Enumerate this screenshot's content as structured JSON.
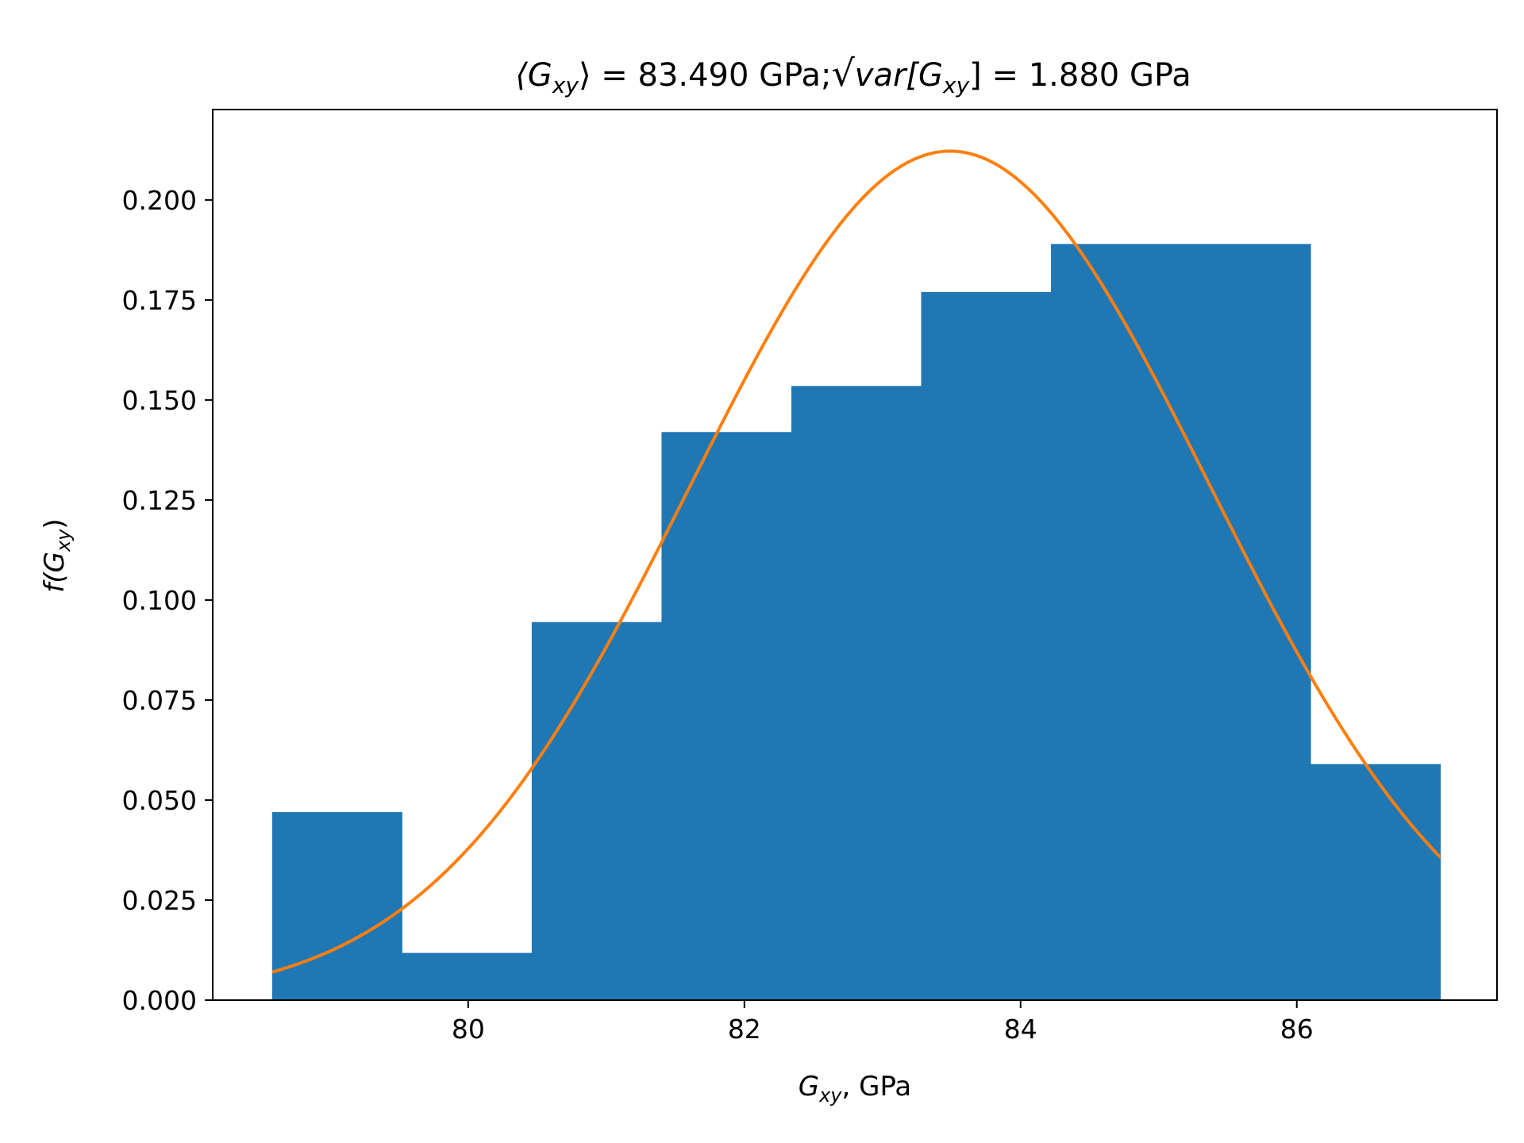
{
  "chart_data": {
    "type": "bar",
    "title": {
      "mean_symbol": "⟨G",
      "mean_sub": "xy",
      "mean_close": "⟩",
      "mean_value": " = 83.490 GPa;",
      "std_radical": "√",
      "std_var": "var[G",
      "std_sub": "xy",
      "std_close": "]",
      "std_value": " = 1.880 GPa"
    },
    "xlabel": {
      "main": "G",
      "sub": "xy",
      "rest": ", GPa"
    },
    "ylabel": {
      "main": "f(G",
      "sub": "xy",
      "rest": ")"
    },
    "xlim": [
      78.15,
      87.45
    ],
    "ylim": [
      0,
      0.2226
    ],
    "xticks": [
      80,
      82,
      84,
      86
    ],
    "xtick_labels": [
      "80",
      "82",
      "84",
      "86"
    ],
    "yticks": [
      0,
      0.025,
      0.05,
      0.075,
      0.1,
      0.125,
      0.15,
      0.175,
      0.2
    ],
    "ytick_labels": [
      "0.000",
      "0.025",
      "0.050",
      "0.075",
      "0.100",
      "0.125",
      "0.150",
      "0.175",
      "0.200"
    ],
    "grid": false,
    "histogram": {
      "name": "",
      "color": "#1f77b4",
      "bin_edges": [
        78.58,
        79.52,
        80.46,
        81.4,
        82.34,
        83.28,
        84.22,
        85.16,
        86.1,
        87.04
      ],
      "values": [
        0.047,
        0.0118,
        0.0945,
        0.142,
        0.1535,
        0.177,
        0.189,
        0.189,
        0.059
      ]
    },
    "fit_curve": {
      "name": "",
      "type": "normal_pdf",
      "color": "#ff7f0e",
      "mean": 83.49,
      "std": 1.88,
      "x_range": [
        78.58,
        87.04
      ]
    }
  }
}
